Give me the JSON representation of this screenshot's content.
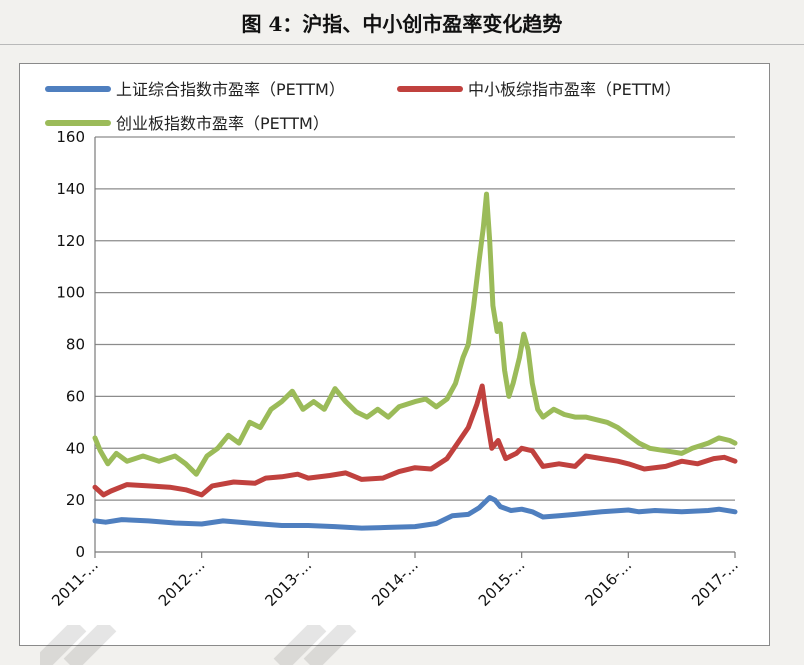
{
  "title": "图 4：沪指、中小创市盈率变化趋势",
  "chart_data": {
    "type": "line",
    "ylim": [
      0,
      160
    ],
    "yticks": [
      0,
      20,
      40,
      60,
      80,
      100,
      120,
      140,
      160
    ],
    "xlim": [
      2011.0,
      2017.0
    ],
    "xticks": [
      {
        "label": "2011-...",
        "x": 2011
      },
      {
        "label": "2012-...",
        "x": 2012
      },
      {
        "label": "2013-...",
        "x": 2013
      },
      {
        "label": "2014-...",
        "x": 2014
      },
      {
        "label": "2015-...",
        "x": 2015
      },
      {
        "label": "2016-...",
        "x": 2016
      },
      {
        "label": "2017-...",
        "x": 2017
      }
    ],
    "grid": true,
    "legend_position": "top",
    "series": [
      {
        "name": "上证综合指数市盈率（PETTM）",
        "color": "#4f7fbf",
        "points": [
          [
            2011.0,
            12
          ],
          [
            2011.1,
            11.5
          ],
          [
            2011.25,
            12.5
          ],
          [
            2011.5,
            12
          ],
          [
            2011.75,
            11.2
          ],
          [
            2012.0,
            10.8
          ],
          [
            2012.2,
            12
          ],
          [
            2012.5,
            11
          ],
          [
            2012.75,
            10.2
          ],
          [
            2013.0,
            10.2
          ],
          [
            2013.25,
            9.8
          ],
          [
            2013.5,
            9.2
          ],
          [
            2013.75,
            9.5
          ],
          [
            2014.0,
            9.8
          ],
          [
            2014.2,
            11
          ],
          [
            2014.35,
            14
          ],
          [
            2014.5,
            14.5
          ],
          [
            2014.6,
            17
          ],
          [
            2014.7,
            21
          ],
          [
            2014.75,
            20
          ],
          [
            2014.8,
            17.5
          ],
          [
            2014.9,
            16
          ],
          [
            2015.0,
            16.5
          ],
          [
            2015.1,
            15.5
          ],
          [
            2015.2,
            13.5
          ],
          [
            2015.35,
            14
          ],
          [
            2015.5,
            14.5
          ],
          [
            2015.75,
            15.5
          ],
          [
            2016.0,
            16.2
          ],
          [
            2016.1,
            15.5
          ],
          [
            2016.25,
            16
          ],
          [
            2016.5,
            15.5
          ],
          [
            2016.75,
            16
          ],
          [
            2016.85,
            16.5
          ],
          [
            2017.0,
            15.5
          ]
        ]
      },
      {
        "name": "中小板综指市盈率（PETTM）",
        "color": "#c0413e",
        "points": [
          [
            2011.0,
            25
          ],
          [
            2011.08,
            22
          ],
          [
            2011.15,
            23.5
          ],
          [
            2011.3,
            26
          ],
          [
            2011.5,
            25.5
          ],
          [
            2011.7,
            25
          ],
          [
            2011.85,
            24
          ],
          [
            2012.0,
            22
          ],
          [
            2012.1,
            25.5
          ],
          [
            2012.3,
            27
          ],
          [
            2012.5,
            26.5
          ],
          [
            2012.6,
            28.5
          ],
          [
            2012.75,
            29
          ],
          [
            2012.9,
            30
          ],
          [
            2013.0,
            28.5
          ],
          [
            2013.2,
            29.5
          ],
          [
            2013.35,
            30.5
          ],
          [
            2013.5,
            28
          ],
          [
            2013.7,
            28.5
          ],
          [
            2013.85,
            31
          ],
          [
            2014.0,
            32.5
          ],
          [
            2014.15,
            32
          ],
          [
            2014.3,
            36
          ],
          [
            2014.4,
            42
          ],
          [
            2014.5,
            48
          ],
          [
            2014.58,
            57
          ],
          [
            2014.63,
            64
          ],
          [
            2014.66,
            55
          ],
          [
            2014.72,
            40
          ],
          [
            2014.78,
            43
          ],
          [
            2014.85,
            36
          ],
          [
            2014.95,
            38
          ],
          [
            2015.0,
            40
          ],
          [
            2015.1,
            39
          ],
          [
            2015.2,
            33
          ],
          [
            2015.35,
            34
          ],
          [
            2015.5,
            33
          ],
          [
            2015.6,
            37
          ],
          [
            2015.75,
            36
          ],
          [
            2015.9,
            35
          ],
          [
            2016.0,
            34
          ],
          [
            2016.15,
            32
          ],
          [
            2016.35,
            33
          ],
          [
            2016.5,
            35
          ],
          [
            2016.65,
            34
          ],
          [
            2016.8,
            36
          ],
          [
            2016.9,
            36.5
          ],
          [
            2017.0,
            35
          ]
        ]
      },
      {
        "name": "创业板指数市盈率（PETTM）",
        "color": "#9bbb59",
        "points": [
          [
            2011.0,
            44
          ],
          [
            2011.05,
            39
          ],
          [
            2011.12,
            34
          ],
          [
            2011.2,
            38
          ],
          [
            2011.3,
            35
          ],
          [
            2011.45,
            37
          ],
          [
            2011.6,
            35
          ],
          [
            2011.75,
            37
          ],
          [
            2011.85,
            34
          ],
          [
            2011.95,
            30
          ],
          [
            2012.05,
            37
          ],
          [
            2012.15,
            40
          ],
          [
            2012.25,
            45
          ],
          [
            2012.35,
            42
          ],
          [
            2012.45,
            50
          ],
          [
            2012.55,
            48
          ],
          [
            2012.65,
            55
          ],
          [
            2012.75,
            58
          ],
          [
            2012.85,
            62
          ],
          [
            2012.95,
            55
          ],
          [
            2013.05,
            58
          ],
          [
            2013.15,
            55
          ],
          [
            2013.25,
            63
          ],
          [
            2013.35,
            58
          ],
          [
            2013.45,
            54
          ],
          [
            2013.55,
            52
          ],
          [
            2013.65,
            55
          ],
          [
            2013.75,
            52
          ],
          [
            2013.85,
            56
          ],
          [
            2014.0,
            58
          ],
          [
            2014.1,
            59
          ],
          [
            2014.2,
            56
          ],
          [
            2014.3,
            59
          ],
          [
            2014.38,
            65
          ],
          [
            2014.45,
            75
          ],
          [
            2014.5,
            80
          ],
          [
            2014.55,
            95
          ],
          [
            2014.6,
            112
          ],
          [
            2014.64,
            125
          ],
          [
            2014.67,
            138
          ],
          [
            2014.7,
            120
          ],
          [
            2014.73,
            95
          ],
          [
            2014.77,
            85
          ],
          [
            2014.8,
            88
          ],
          [
            2014.84,
            70
          ],
          [
            2014.88,
            60
          ],
          [
            2014.92,
            65
          ],
          [
            2014.98,
            75
          ],
          [
            2015.02,
            84
          ],
          [
            2015.06,
            78
          ],
          [
            2015.1,
            65
          ],
          [
            2015.15,
            55
          ],
          [
            2015.2,
            52
          ],
          [
            2015.3,
            55
          ],
          [
            2015.4,
            53
          ],
          [
            2015.5,
            52
          ],
          [
            2015.6,
            52
          ],
          [
            2015.7,
            51
          ],
          [
            2015.8,
            50
          ],
          [
            2015.9,
            48
          ],
          [
            2016.0,
            45
          ],
          [
            2016.1,
            42
          ],
          [
            2016.2,
            40
          ],
          [
            2016.35,
            39
          ],
          [
            2016.5,
            38
          ],
          [
            2016.6,
            40
          ],
          [
            2016.75,
            42
          ],
          [
            2016.85,
            44
          ],
          [
            2016.95,
            43
          ],
          [
            2017.0,
            42
          ]
        ]
      }
    ]
  }
}
